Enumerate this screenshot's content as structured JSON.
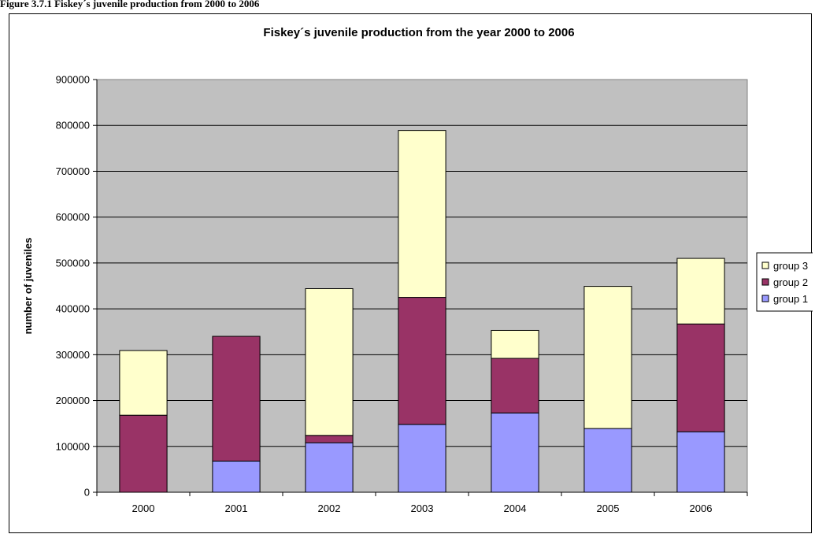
{
  "caption": "Figure 3.7.1 Fiskey´s juvenile production from 2000 to 2006",
  "chart_data": {
    "type": "bar",
    "stacked": true,
    "title": "Fiskey´s juvenile production from the year 2000 to 2006",
    "xlabel": "",
    "ylabel": "number of juveniles",
    "ylim": [
      0,
      900000
    ],
    "yticks": [
      0,
      100000,
      200000,
      300000,
      400000,
      500000,
      600000,
      700000,
      800000,
      900000
    ],
    "categories": [
      "2000",
      "2001",
      "2002",
      "2003",
      "2004",
      "2005",
      "2006"
    ],
    "series": [
      {
        "name": "group 1",
        "color": "#9999ff",
        "values": [
          0,
          68000,
          108000,
          148000,
          173000,
          139000,
          132000
        ]
      },
      {
        "name": "group 2",
        "color": "#993366",
        "values": [
          168000,
          272000,
          16000,
          277000,
          119000,
          0,
          235000
        ]
      },
      {
        "name": "group 3",
        "color": "#ffffcc",
        "values": [
          141000,
          0,
          320000,
          364000,
          61000,
          310000,
          143000
        ]
      }
    ],
    "legend_order": [
      "group 3",
      "group 2",
      "group 1"
    ],
    "legend_position": "right",
    "grid": true,
    "plot_background": "#c0c0c0"
  }
}
